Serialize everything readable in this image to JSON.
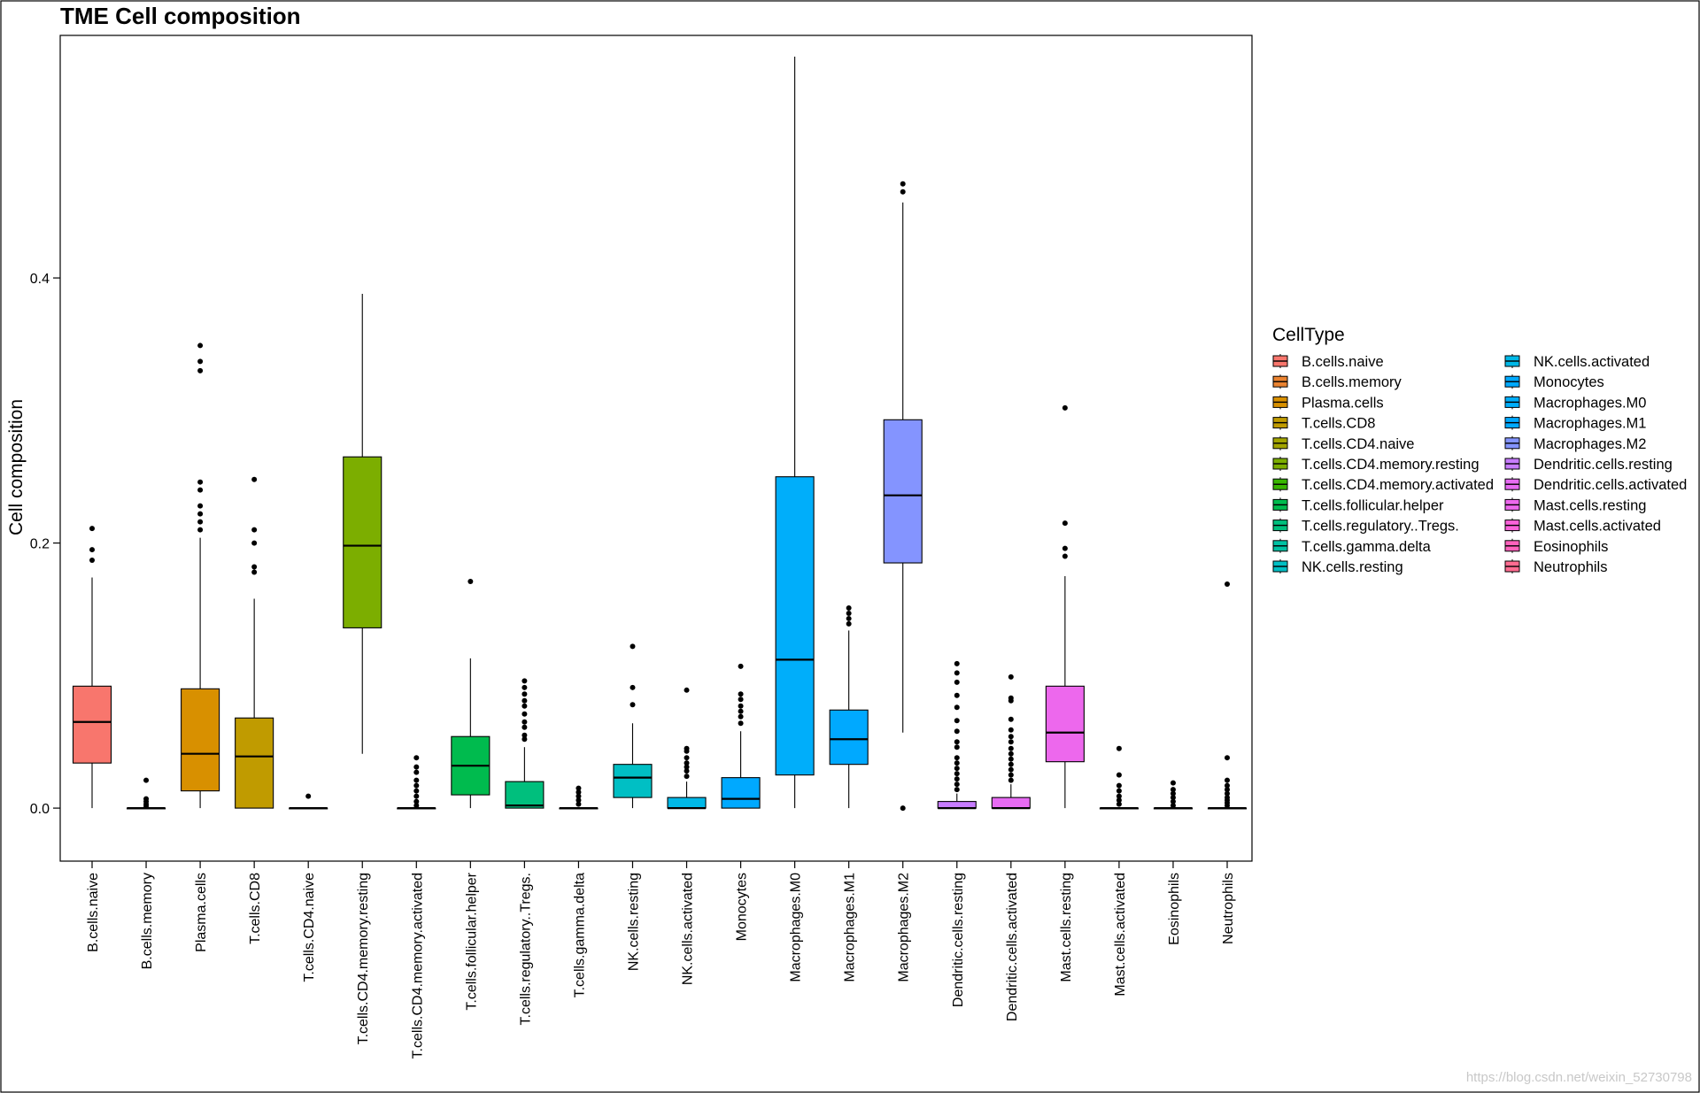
{
  "chart_data": {
    "type": "boxplot",
    "title": "TME Cell composition",
    "xlabel": "",
    "ylabel": "Cell composition",
    "ylim": [
      -0.04,
      0.583
    ],
    "yticks": [
      0.0,
      0.2,
      0.4
    ],
    "ytick_labels": [
      "0.0",
      "0.2",
      "0.4"
    ],
    "legend_title": "CellType",
    "legend_position": "right",
    "watermark": "https://blog.csdn.net/weixin_52730798",
    "series": [
      {
        "name": "B.cells.naive",
        "color": "#F8766D",
        "min": 0.0,
        "q1": 0.034,
        "median": 0.065,
        "q3": 0.092,
        "max": 0.174,
        "outliers": [
          0.187,
          0.195,
          0.211
        ]
      },
      {
        "name": "B.cells.memory",
        "color": "#EA8331",
        "min": 0.0,
        "q1": 0.0,
        "median": 0.0,
        "q3": 0.0,
        "max": 0.0,
        "outliers": [
          0.0015,
          0.003,
          0.005,
          0.007,
          0.021
        ]
      },
      {
        "name": "Plasma.cells",
        "color": "#D89000",
        "min": 0.0,
        "q1": 0.013,
        "median": 0.041,
        "q3": 0.09,
        "max": 0.204,
        "outliers": [
          0.21,
          0.216,
          0.222,
          0.228,
          0.24,
          0.246,
          0.33,
          0.337,
          0.349
        ]
      },
      {
        "name": "T.cells.CD8",
        "color": "#C09B00",
        "min": 0.0,
        "q1": 0.0,
        "median": 0.039,
        "q3": 0.068,
        "max": 0.158,
        "outliers": [
          0.178,
          0.182,
          0.2,
          0.21,
          0.248
        ]
      },
      {
        "name": "T.cells.CD4.naive",
        "color": "#A3A500",
        "min": 0.0,
        "q1": 0.0,
        "median": 0.0,
        "q3": 0.0,
        "max": 0.0,
        "outliers": [
          0.009
        ]
      },
      {
        "name": "T.cells.CD4.memory.resting",
        "color": "#7CAE00",
        "min": 0.041,
        "q1": 0.136,
        "median": 0.198,
        "q3": 0.265,
        "max": 0.388,
        "outliers": []
      },
      {
        "name": "T.cells.CD4.memory.activated",
        "color": "#39B600",
        "min": 0.0,
        "q1": 0.0,
        "median": 0.0,
        "q3": 0.0,
        "max": 0.0,
        "outliers": [
          0.002,
          0.005,
          0.009,
          0.013,
          0.017,
          0.021,
          0.027,
          0.031,
          0.038
        ]
      },
      {
        "name": "T.cells.follicular.helper",
        "color": "#00BB4E",
        "min": 0.0,
        "q1": 0.01,
        "median": 0.032,
        "q3": 0.054,
        "max": 0.113,
        "outliers": [
          0.171
        ]
      },
      {
        "name": "T.cells.regulatory..Tregs.",
        "color": "#00BF7D",
        "min": 0.0,
        "q1": 0.0,
        "median": 0.002,
        "q3": 0.02,
        "max": 0.046,
        "outliers": [
          0.052,
          0.055,
          0.061,
          0.065,
          0.071,
          0.077,
          0.081,
          0.086,
          0.091,
          0.096
        ]
      },
      {
        "name": "T.cells.gamma.delta",
        "color": "#00C1A3",
        "min": 0.0,
        "q1": 0.0,
        "median": 0.0,
        "q3": 0.0,
        "max": 0.0,
        "outliers": [
          0.003,
          0.006,
          0.009,
          0.012,
          0.015
        ]
      },
      {
        "name": "NK.cells.resting",
        "color": "#00BFC4",
        "min": 0.0,
        "q1": 0.008,
        "median": 0.023,
        "q3": 0.033,
        "max": 0.064,
        "outliers": [
          0.078,
          0.091,
          0.122
        ]
      },
      {
        "name": "NK.cells.activated",
        "color": "#00B8E7",
        "min": 0.0,
        "q1": 0.0,
        "median": 0.0,
        "q3": 0.008,
        "max": 0.02,
        "outliers": [
          0.024,
          0.028,
          0.031,
          0.034,
          0.038,
          0.043,
          0.045,
          0.089
        ]
      },
      {
        "name": "Monocytes",
        "color": "#00A9FF",
        "min": 0.0,
        "q1": 0.0,
        "median": 0.007,
        "q3": 0.023,
        "max": 0.058,
        "outliers": [
          0.064,
          0.069,
          0.073,
          0.077,
          0.082,
          0.086,
          0.107
        ]
      },
      {
        "name": "Macrophages.M0",
        "color": "#00AEFA",
        "min": 0.0,
        "q1": 0.025,
        "median": 0.112,
        "q3": 0.25,
        "max": 0.567,
        "outliers": []
      },
      {
        "name": "Macrophages.M1",
        "color": "#00A9FF",
        "min": 0.0,
        "q1": 0.033,
        "median": 0.052,
        "q3": 0.074,
        "max": 0.134,
        "outliers": [
          0.139,
          0.143,
          0.147,
          0.151
        ]
      },
      {
        "name": "Macrophages.M2",
        "color": "#8494FF",
        "min": 0.057,
        "q1": 0.185,
        "median": 0.236,
        "q3": 0.293,
        "max": 0.457,
        "outliers": [
          0.0,
          0.465,
          0.471
        ]
      },
      {
        "name": "Dendritic.cells.resting",
        "color": "#C77CFF",
        "min": 0.0,
        "q1": 0.0,
        "median": 0.0,
        "q3": 0.005,
        "max": 0.011,
        "outliers": [
          0.014,
          0.018,
          0.022,
          0.026,
          0.03,
          0.034,
          0.038,
          0.046,
          0.05,
          0.058,
          0.066,
          0.076,
          0.085,
          0.095,
          0.102,
          0.109
        ]
      },
      {
        "name": "Dendritic.cells.activated",
        "color": "#E76BF3",
        "min": 0.0,
        "q1": 0.0,
        "median": 0.0,
        "q3": 0.008,
        "max": 0.018,
        "outliers": [
          0.021,
          0.025,
          0.029,
          0.033,
          0.037,
          0.041,
          0.045,
          0.05,
          0.054,
          0.059,
          0.067,
          0.081,
          0.083,
          0.099
        ]
      },
      {
        "name": "Mast.cells.resting",
        "color": "#ED68ED",
        "min": 0.0,
        "q1": 0.035,
        "median": 0.057,
        "q3": 0.092,
        "max": 0.175,
        "outliers": [
          0.19,
          0.196,
          0.215,
          0.302
        ]
      },
      {
        "name": "Mast.cells.activated",
        "color": "#FA62DB",
        "min": 0.0,
        "q1": 0.0,
        "median": 0.0,
        "q3": 0.0,
        "max": 0.0,
        "outliers": [
          0.003,
          0.006,
          0.009,
          0.013,
          0.017,
          0.025,
          0.045
        ]
      },
      {
        "name": "Eosinophils",
        "color": "#FF62BC",
        "min": 0.0,
        "q1": 0.0,
        "median": 0.0,
        "q3": 0.0,
        "max": 0.0,
        "outliers": [
          0.002,
          0.005,
          0.008,
          0.011,
          0.014,
          0.019
        ]
      },
      {
        "name": "Neutrophils",
        "color": "#FF6C91",
        "min": 0.0,
        "q1": 0.0,
        "median": 0.0,
        "q3": 0.0,
        "max": 0.0,
        "outliers": [
          0.002,
          0.004,
          0.006,
          0.008,
          0.011,
          0.014,
          0.017,
          0.021,
          0.038,
          0.169
        ]
      }
    ]
  }
}
